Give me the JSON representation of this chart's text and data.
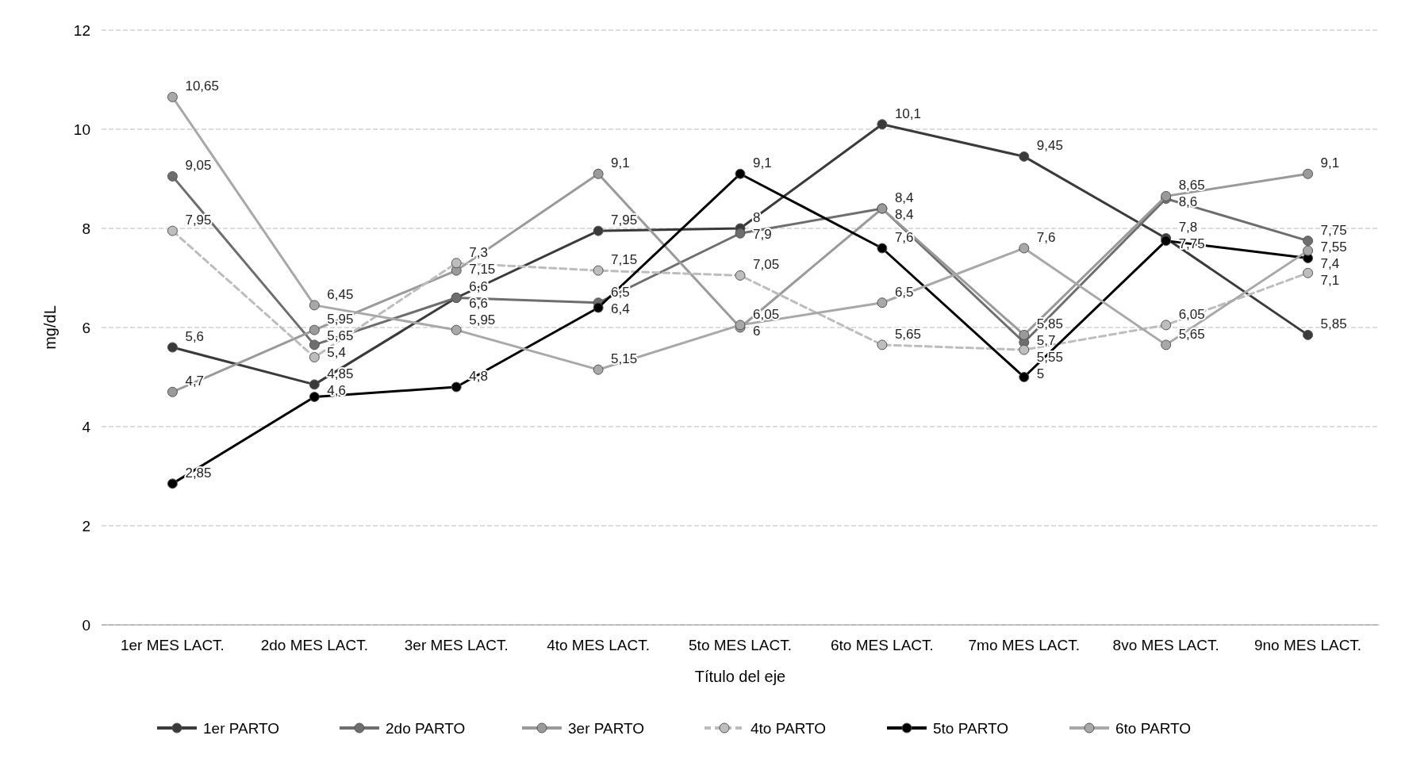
{
  "chart_data": {
    "type": "line",
    "xlabel": "Título del eje",
    "ylabel": "mg/dL",
    "categories": [
      "1er MES LACT.",
      "2do MES LACT.",
      "3er MES LACT.",
      "4to MES LACT.",
      "5to MES LACT.",
      "6to MES LACT.",
      "7mo MES LACT.",
      "8vo MES LACT.",
      "9no MES LACT."
    ],
    "ylim": [
      0,
      12
    ],
    "yticks": [
      0,
      2,
      4,
      6,
      8,
      10,
      12
    ],
    "grid": "y",
    "legend": "bottom",
    "marker": "circle",
    "line_style": "solid",
    "series": [
      {
        "name": "1er  PARTO",
        "color": "#3a3a3a",
        "values": [
          5.6,
          4.85,
          6.6,
          7.95,
          8,
          10.1,
          9.45,
          7.8,
          5.85
        ],
        "value_labels": [
          "5,6",
          "4,85",
          "6,6",
          "7,95",
          "8",
          "10,1",
          "9,45",
          "7,8",
          "5,85"
        ]
      },
      {
        "name": "2do PARTO",
        "color": "#6e6e6e",
        "values": [
          9.05,
          5.65,
          6.6,
          6.5,
          7.9,
          8.4,
          5.7,
          8.6,
          7.75
        ],
        "value_labels": [
          "9,05",
          "5,65",
          "6,6",
          "6,5",
          "7,9",
          "8,4",
          "5,7",
          "8,6",
          "7,75"
        ]
      },
      {
        "name": "3er PARTO",
        "color": "#9a9a9a",
        "values": [
          4.7,
          5.95,
          7.15,
          9.1,
          6,
          8.4,
          5.85,
          8.65,
          9.1
        ],
        "value_labels": [
          "4,7",
          "5,95",
          "7,15",
          "9,1",
          "6",
          "8,4",
          "5,85",
          "8,65",
          "9,1"
        ]
      },
      {
        "name": "4to PARTO",
        "color": "#bdbdbd",
        "line_style": "dashed",
        "values": [
          7.95,
          5.4,
          7.3,
          7.15,
          7.05,
          5.65,
          5.55,
          6.05,
          7.1
        ],
        "value_labels": [
          "7,95",
          "5,4",
          "7,3",
          "7,15",
          "7,05",
          "5,65",
          "5,55",
          "6,05",
          "7,1"
        ]
      },
      {
        "name": "5to PARTO",
        "color": "#000000",
        "values": [
          2.85,
          4.6,
          4.8,
          6.4,
          9.1,
          7.6,
          5,
          7.75,
          7.4
        ],
        "value_labels": [
          "2,85",
          "4,6",
          "4,8",
          "6,4",
          "9,1",
          "7,6",
          "5",
          "7,75",
          "7,4"
        ]
      },
      {
        "name": "6to PARTO",
        "color": "#a8a8a8",
        "values": [
          10.65,
          6.45,
          5.95,
          5.15,
          6.05,
          6.5,
          7.6,
          5.65,
          7.55
        ],
        "value_labels": [
          "10,65",
          "6,45",
          "5,95",
          "5,15",
          "6,05",
          "6,5",
          "7,6",
          "5,65",
          "7,55"
        ]
      }
    ]
  }
}
